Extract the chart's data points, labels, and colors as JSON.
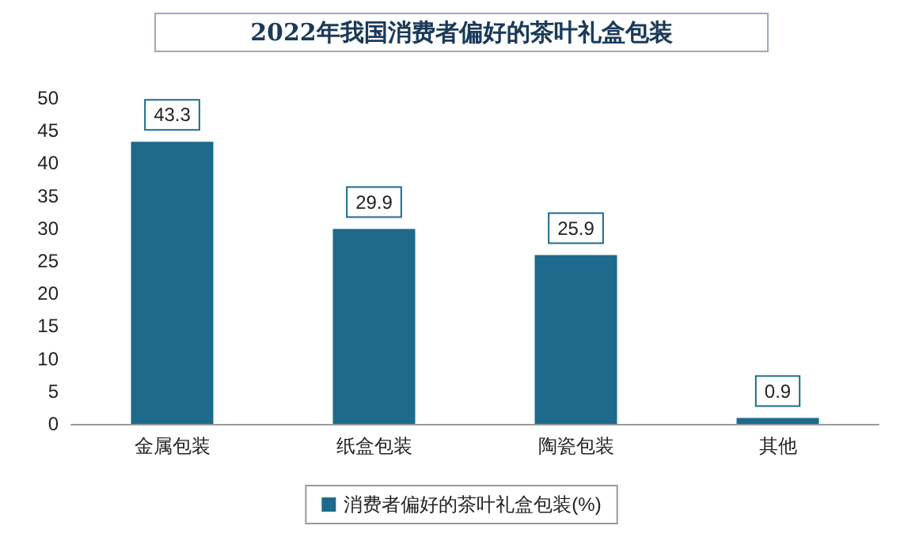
{
  "chart_data": {
    "type": "bar",
    "title": "2022年我国消费者偏好的茶叶礼盒包装",
    "categories": [
      "金属包装",
      "纸盒包装",
      "陶瓷包装",
      "其他"
    ],
    "series": [
      {
        "name": "消费者偏好的茶叶礼盒包装(%)",
        "color": "#1d6a8c",
        "values": [
          43.3,
          29.9,
          25.9,
          0.9
        ]
      }
    ],
    "ylim": [
      0,
      50
    ],
    "yticks": [
      0,
      5,
      10,
      15,
      20,
      25,
      30,
      35,
      40,
      45,
      50
    ],
    "data_labels": true,
    "grid": false,
    "legend": "bottom"
  }
}
